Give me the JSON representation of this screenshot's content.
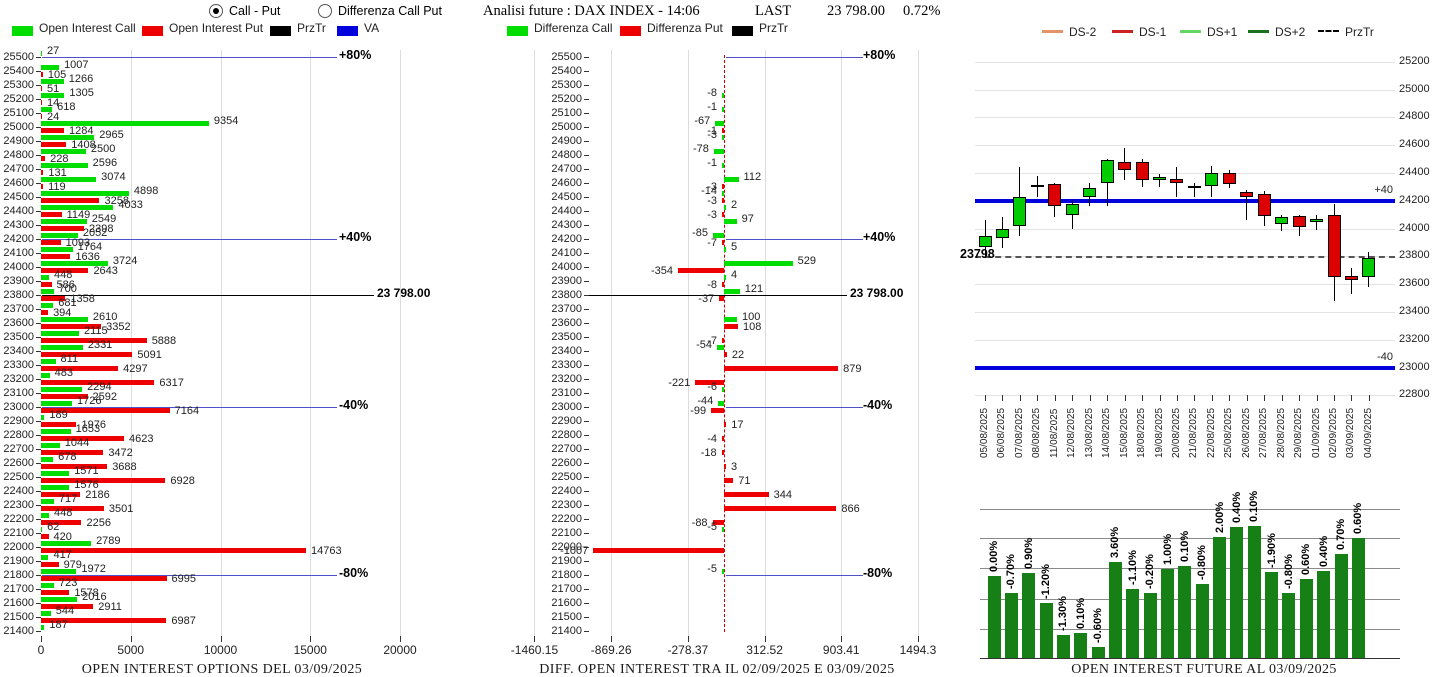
{
  "header": {
    "radio_call_put": "Call - Put",
    "radio_diff": "Differenza Call Put",
    "title": "Analisi future : DAX INDEX - 14:06",
    "last_label": "LAST",
    "last_value": "23 798.00",
    "last_change": "0.72%"
  },
  "panels": {
    "left": {
      "caption": "OPEN INTEREST OPTIONS DEL 03/09/2025",
      "legend": [
        {
          "label": "Open Interest Call",
          "color": "#00dd00",
          "swatch": "rect"
        },
        {
          "label": "Open Interest Put",
          "color": "#ee0000",
          "swatch": "rect"
        },
        {
          "label": "PrzTr",
          "color": "#000000",
          "swatch": "rect"
        },
        {
          "label": "VA",
          "color": "#0000dd",
          "swatch": "rect"
        }
      ]
    },
    "middle": {
      "caption": "DIFF. OPEN INTEREST TRA IL 02/09/2025 E 03/09/2025",
      "legend": [
        {
          "label": "Differenza Call",
          "color": "#00dd00",
          "swatch": "rect"
        },
        {
          "label": "Differenza Put",
          "color": "#ee0000",
          "swatch": "rect"
        },
        {
          "label": "PrzTr",
          "color": "#000000",
          "swatch": "rect"
        }
      ]
    },
    "right": {
      "caption": "OPEN INTEREST FUTURE AL 03/09/2025",
      "legend": [
        {
          "label": "DS-2",
          "color": "#e8926a",
          "swatch": "line"
        },
        {
          "label": "DS-1",
          "color": "#cc2222",
          "swatch": "line"
        },
        {
          "label": "DS+1",
          "color": "#63d663",
          "swatch": "line"
        },
        {
          "label": "DS+2",
          "color": "#1d701d",
          "swatch": "line"
        },
        {
          "label": "PrzTr",
          "color": "#000000",
          "swatch": "dash"
        }
      ]
    }
  },
  "chart_data": [
    {
      "id": "oi_options",
      "type": "bar",
      "orientation": "horizontal",
      "title": "OPEN INTEREST OPTIONS DEL 03/09/2025",
      "strikes": [
        25500,
        25400,
        25300,
        25200,
        25100,
        25000,
        24900,
        24800,
        24700,
        24600,
        24500,
        24400,
        24300,
        24200,
        24100,
        24000,
        23900,
        23800,
        23700,
        23600,
        23500,
        23400,
        23300,
        23200,
        23100,
        23000,
        22900,
        22800,
        22700,
        22600,
        22500,
        22400,
        22300,
        22200,
        22100,
        22000,
        21900,
        21800,
        21700,
        21600,
        21500,
        21400
      ],
      "series": [
        {
          "name": "Open Interest Call",
          "color": "#00dd00",
          "values": [
            27,
            1007,
            1266,
            1305,
            618,
            9354,
            2965,
            2500,
            2596,
            3074,
            4898,
            4033,
            2549,
            2052,
            1764,
            3724,
            448,
            700,
            681,
            2610,
            2115,
            2331,
            811,
            483,
            2294,
            1726,
            189,
            1653,
            1044,
            678,
            1571,
            1576,
            717,
            448,
            62,
            2789,
            417,
            1972,
            723,
            2016,
            544,
            187
          ]
        },
        {
          "name": "Open Interest Put",
          "color": "#ee0000",
          "values": [
            0,
            105,
            51,
            14,
            24,
            1284,
            1408,
            228,
            131,
            119,
            3258,
            1149,
            2398,
            1093,
            1636,
            2643,
            586,
            1358,
            394,
            3352,
            5888,
            5091,
            4297,
            6317,
            2592,
            7164,
            1976,
            4623,
            3472,
            3688,
            6928,
            2186,
            3501,
            2256,
            420,
            14763,
            979,
            6995,
            1578,
            2911,
            6987,
            0
          ]
        }
      ],
      "xticks": [
        0,
        5000,
        10000,
        15000,
        20000
      ],
      "xlim": [
        0,
        20000
      ],
      "markers": [
        {
          "label": "+80%",
          "strike": 25500,
          "kind": "va"
        },
        {
          "label": "+40%",
          "strike": 24200,
          "kind": "va"
        },
        {
          "label": "23 798.00",
          "strike": 23798,
          "kind": "przt"
        },
        {
          "label": "-40%",
          "strike": 23000,
          "kind": "va"
        },
        {
          "label": "-80%",
          "strike": 21800,
          "kind": "va"
        }
      ]
    },
    {
      "id": "oi_diff",
      "type": "bar",
      "orientation": "horizontal",
      "title": "DIFF. OPEN INTEREST TRA IL 02/09/2025 E 03/09/2025",
      "strikes": [
        25500,
        25400,
        25300,
        25200,
        25100,
        25000,
        24900,
        24800,
        24700,
        24600,
        24500,
        24400,
        24300,
        24200,
        24100,
        24000,
        23900,
        23800,
        23700,
        23600,
        23500,
        23400,
        23300,
        23200,
        23100,
        23000,
        22900,
        22800,
        22700,
        22600,
        22500,
        22400,
        22300,
        22200,
        22100,
        22000,
        21900,
        21800,
        21700,
        21600,
        21500,
        21400
      ],
      "series": [
        {
          "name": "Differenza Call",
          "color": "#00dd00",
          "values": [
            null,
            null,
            null,
            -8,
            -1,
            -67,
            -3,
            -78,
            -1,
            112,
            -14,
            2,
            97,
            -85,
            5,
            529,
            4,
            121,
            null,
            100,
            null,
            -54,
            null,
            null,
            -6,
            -44,
            null,
            null,
            null,
            null,
            null,
            null,
            null,
            null,
            -5,
            null,
            null,
            -5,
            null,
            null,
            null,
            null
          ]
        },
        {
          "name": "Differenza Put",
          "color": "#ee0000",
          "values": [
            null,
            null,
            null,
            null,
            null,
            -1,
            null,
            null,
            null,
            -3,
            -3,
            -3,
            null,
            -7,
            null,
            -354,
            -8,
            -37,
            null,
            108,
            -7,
            22,
            879,
            -221,
            null,
            -99,
            17,
            -4,
            -18,
            3,
            71,
            344,
            866,
            -88,
            null,
            -1007,
            null,
            null,
            null,
            null,
            null,
            null
          ]
        }
      ],
      "xticks": [
        "-1460.15",
        "-869.26",
        "-278.37",
        "312.52",
        "903.41",
        "1494.3"
      ],
      "xlim": [
        -1460.15,
        1494.3
      ],
      "markers": [
        {
          "label": "+80%",
          "strike": 25500,
          "kind": "va"
        },
        {
          "label": "+40%",
          "strike": 24200,
          "kind": "va"
        },
        {
          "label": "23 798.00",
          "strike": 23798,
          "kind": "przt"
        },
        {
          "label": "-40%",
          "strike": 23000,
          "kind": "va"
        },
        {
          "label": "-80%",
          "strike": 21800,
          "kind": "va"
        }
      ]
    },
    {
      "id": "future_candles",
      "type": "candlestick",
      "dates": [
        "05/08/2025",
        "06/08/2025",
        "07/08/2025",
        "08/08/2025",
        "11/08/2025",
        "12/08/2025",
        "13/08/2025",
        "14/08/2025",
        "15/08/2025",
        "18/08/2025",
        "19/08/2025",
        "20/08/2025",
        "21/08/2025",
        "22/08/2025",
        "25/08/2025",
        "26/08/2025",
        "27/08/2025",
        "28/08/2025",
        "29/08/2025",
        "01/09/2025",
        "02/09/2025",
        "03/09/2025",
        "04/09/2025"
      ],
      "ohlc": [
        [
          23870,
          24060,
          23800,
          23945
        ],
        [
          23935,
          24080,
          23860,
          24000
        ],
        [
          24020,
          24440,
          23950,
          24230
        ],
        [
          24310,
          24380,
          24230,
          24312
        ],
        [
          24320,
          24330,
          24080,
          24160
        ],
        [
          24100,
          24200,
          24000,
          24180
        ],
        [
          24230,
          24330,
          24160,
          24290
        ],
        [
          24330,
          24500,
          24160,
          24490
        ],
        [
          24480,
          24580,
          24350,
          24420
        ],
        [
          24480,
          24500,
          24300,
          24350
        ],
        [
          24350,
          24390,
          24300,
          24370
        ],
        [
          24360,
          24440,
          24230,
          24330
        ],
        [
          24310,
          24330,
          24230,
          24290
        ],
        [
          24310,
          24450,
          24230,
          24400
        ],
        [
          24400,
          24420,
          24290,
          24320
        ],
        [
          24260,
          24280,
          24060,
          24230
        ],
        [
          24250,
          24270,
          24020,
          24090
        ],
        [
          24030,
          24100,
          23980,
          24080
        ],
        [
          24090,
          24100,
          23950,
          24010
        ],
        [
          24050,
          24100,
          23990,
          24070
        ],
        [
          24100,
          24180,
          23480,
          23650
        ],
        [
          23660,
          23720,
          23530,
          23630
        ],
        [
          23650,
          23830,
          23580,
          23790
        ]
      ],
      "yticks": [
        25200,
        25000,
        24800,
        24600,
        24400,
        24200,
        24000,
        23800,
        23600,
        23400,
        23200,
        23000,
        22800
      ],
      "ylim": [
        22800,
        25200
      ],
      "up_color": "#00cc00",
      "down_color": "#dd0000",
      "levels": [
        {
          "label": "+40",
          "value": 24200,
          "kind": "va"
        },
        {
          "label": "-40",
          "value": 23000,
          "kind": "va"
        },
        {
          "label": "23798",
          "value": 23798,
          "kind": "przt"
        }
      ]
    },
    {
      "id": "future_oi_bars",
      "type": "bar",
      "title": "OPEN INTEREST FUTURE AL 03/09/2025",
      "labels": [
        "0.00%",
        "-0.70%",
        "0.90%",
        "-1.20%",
        "-1.30%",
        "0.10%",
        "-0.60%",
        "3.60%",
        "-1.10%",
        "-0.20%",
        "1.00%",
        "0.10%",
        "-0.80%",
        "2.00%",
        "0.40%",
        "0.10%",
        "-1.90%",
        "-0.80%",
        "0.60%",
        "0.40%",
        "0.70%",
        "0.60%"
      ],
      "rel_heights": [
        0.519,
        0.411,
        0.538,
        0.348,
        0.146,
        0.158,
        0.07,
        0.608,
        0.437,
        0.411,
        0.563,
        0.582,
        0.468,
        0.766,
        0.829,
        0.835,
        0.544,
        0.411,
        0.5,
        0.551,
        0.658,
        0.759
      ],
      "bar_color": "#168016"
    }
  ]
}
